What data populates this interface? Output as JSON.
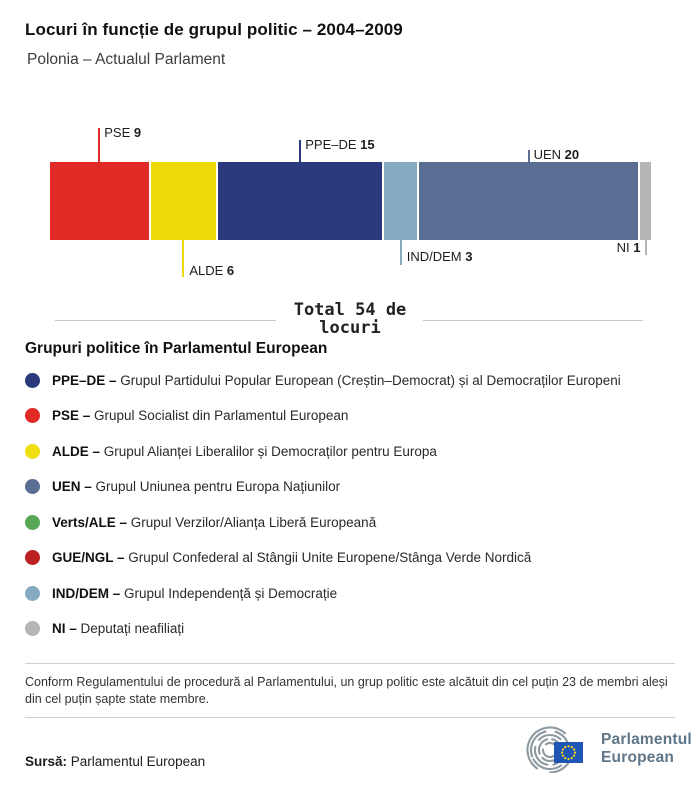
{
  "header": {
    "title": "Locuri în funcție de grupul politic – 2004–2009",
    "subtitle": "Polonia – Actualul Parlament"
  },
  "chart_data": {
    "type": "bar",
    "variant": "horizontal-stacked",
    "title": "Locuri în funcție de grupul politic – 2004–2009",
    "subtitle": "Polonia – Actualul Parlament",
    "total_seats": 54,
    "total_label": "Total 54 de locuri",
    "segments": [
      {
        "group": "PSE",
        "seats": 9,
        "color": "#e12a26"
      },
      {
        "group": "ALDE",
        "seats": 6,
        "color": "#ecda0a"
      },
      {
        "group": "PPE–DE",
        "seats": 15,
        "color": "#2a3a7c"
      },
      {
        "group": "IND/DEM",
        "seats": 3,
        "color": "#85abc2"
      },
      {
        "group": "UEN",
        "seats": 20,
        "color": "#5a6d93"
      },
      {
        "group": "NI",
        "seats": 1,
        "color": "#b5b5b5"
      }
    ]
  },
  "total": {
    "line1": "Total 54 de",
    "line2": "locuri"
  },
  "legend": {
    "heading": "Grupuri politice în Parlamentul European",
    "items": [
      {
        "abbr": "PPE–DE –",
        "desc": "Grupul Partidului Popular European (Creștin–Democrat) și al Democraților Europeni",
        "color": "#2a3a7c"
      },
      {
        "abbr": "PSE –",
        "desc": "Grupul Socialist din Parlamentul European",
        "color": "#e12a26"
      },
      {
        "abbr": "ALDE –",
        "desc": "Grupul Alianței Liberalilor și Democraților pentru Europa",
        "color": "#f0df10"
      },
      {
        "abbr": "UEN –",
        "desc": "Grupul Uniunea pentru Europa Națiunilor",
        "color": "#5a6d93"
      },
      {
        "abbr": "Verts/ALE –",
        "desc": "Grupul Verzilor/Alianța Liberă Europeană",
        "color": "#57a757"
      },
      {
        "abbr": "GUE/NGL –",
        "desc": "Grupul Confederal al Stângii Unite Europene/Stânga Verde Nordică",
        "color": "#bb2121"
      },
      {
        "abbr": "IND/DEM –",
        "desc": "Grupul Independență și Democrație",
        "color": "#85abc2"
      },
      {
        "abbr": "NI –",
        "desc": "Deputați neafiliați",
        "color": "#b5b5b5"
      }
    ]
  },
  "footnote": "Conform Regulamentului de procedură al Parlamentului, un grup politic este alcătuit din cel puțin 23 de membri aleși din cel puțin șapte state membre.",
  "source": {
    "label": "Sursă:",
    "value": "Parlamentul European"
  },
  "logo": {
    "line1": "Parlamentul",
    "line2": "European"
  },
  "colors": {
    "eu_flag_blue": "#1f56b5",
    "eu_star_yellow": "#ffd617",
    "logo_slate": "#5f7688",
    "hemicycle_gray": "#8d99a1"
  }
}
